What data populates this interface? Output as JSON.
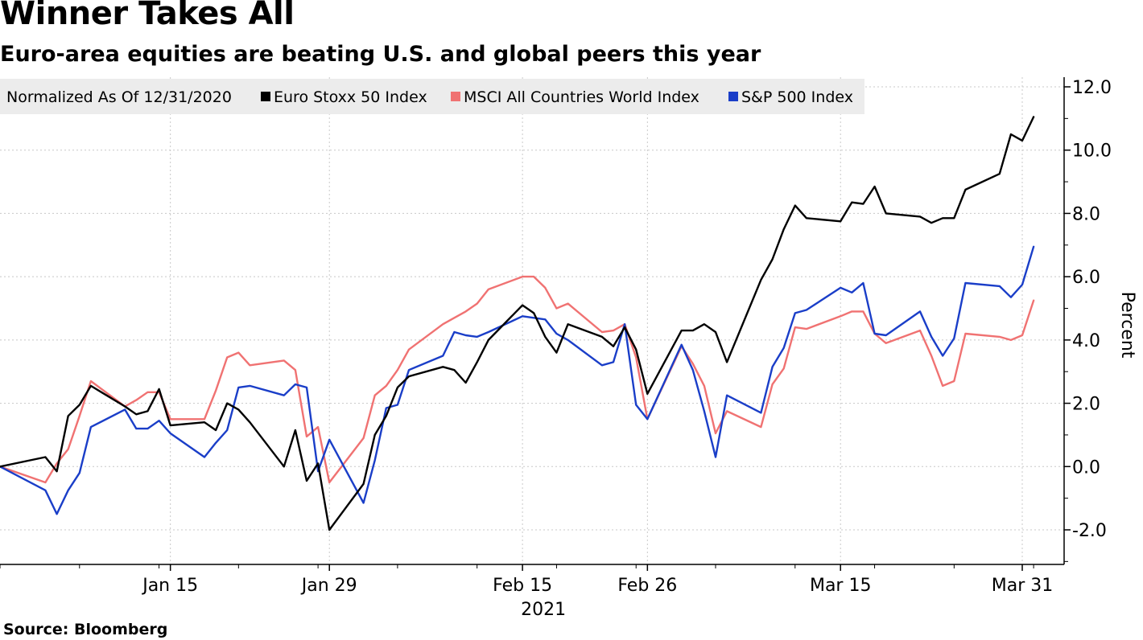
{
  "header": {
    "title": "Winner Takes All",
    "subtitle": "Euro-area equities are beating U.S. and global peers this year"
  },
  "footer": {
    "source": "Source: Bloomberg"
  },
  "chart_data": {
    "type": "line",
    "legend": {
      "title": "Normalized As Of 12/31/2020",
      "placement": "top-left"
    },
    "x": [
      "2020-12-31",
      "2021-01-04",
      "2021-01-05",
      "2021-01-06",
      "2021-01-07",
      "2021-01-08",
      "2021-01-11",
      "2021-01-12",
      "2021-01-13",
      "2021-01-14",
      "2021-01-15",
      "2021-01-18",
      "2021-01-19",
      "2021-01-20",
      "2021-01-21",
      "2021-01-22",
      "2021-01-25",
      "2021-01-26",
      "2021-01-27",
      "2021-01-28",
      "2021-01-29",
      "2021-02-01",
      "2021-02-02",
      "2021-02-03",
      "2021-02-04",
      "2021-02-05",
      "2021-02-08",
      "2021-02-09",
      "2021-02-10",
      "2021-02-11",
      "2021-02-12",
      "2021-02-15",
      "2021-02-16",
      "2021-02-17",
      "2021-02-18",
      "2021-02-19",
      "2021-02-22",
      "2021-02-23",
      "2021-02-24",
      "2021-02-25",
      "2021-02-26",
      "2021-03-01",
      "2021-03-02",
      "2021-03-03",
      "2021-03-04",
      "2021-03-05",
      "2021-03-08",
      "2021-03-09",
      "2021-03-10",
      "2021-03-11",
      "2021-03-12",
      "2021-03-15",
      "2021-03-16",
      "2021-03-17",
      "2021-03-18",
      "2021-03-19",
      "2021-03-22",
      "2021-03-23",
      "2021-03-24",
      "2021-03-25",
      "2021-03-26",
      "2021-03-29",
      "2021-03-30",
      "2021-03-31",
      "2021-04-01"
    ],
    "series": [
      {
        "name": "MSCI All Countries World Index",
        "color": "#f07272",
        "values": [
          0.0,
          -0.5,
          0.1,
          0.55,
          1.6,
          2.7,
          1.9,
          2.1,
          2.35,
          2.35,
          1.5,
          1.5,
          2.4,
          3.45,
          3.6,
          3.2,
          3.35,
          3.05,
          0.95,
          1.25,
          -0.5,
          0.9,
          2.25,
          2.55,
          3.05,
          3.7,
          4.5,
          4.7,
          4.9,
          5.15,
          5.6,
          6.0,
          6.0,
          5.65,
          5.0,
          5.15,
          4.25,
          4.3,
          4.5,
          3.45,
          1.5,
          3.8,
          3.25,
          2.55,
          1.05,
          1.75,
          1.25,
          2.6,
          3.1,
          4.4,
          4.35,
          4.75,
          4.9,
          4.9,
          4.2,
          3.9,
          4.3,
          3.5,
          2.55,
          2.7,
          4.2,
          4.1,
          4.0,
          4.15,
          5.25
        ]
      },
      {
        "name": "S&P 500 Index",
        "color": "#1a3ec8",
        "values": [
          0.0,
          -0.75,
          -1.5,
          -0.75,
          -0.2,
          1.25,
          1.8,
          1.2,
          1.2,
          1.45,
          1.05,
          0.3,
          0.75,
          1.15,
          2.5,
          2.55,
          2.25,
          2.6,
          2.5,
          -0.15,
          0.85,
          -1.15,
          0.2,
          1.85,
          1.95,
          3.05,
          3.5,
          4.25,
          4.15,
          4.1,
          4.25,
          4.75,
          4.7,
          4.65,
          4.2,
          4.0,
          3.2,
          3.3,
          4.5,
          1.95,
          1.5,
          3.85,
          3.05,
          1.75,
          0.3,
          2.25,
          1.7,
          3.15,
          3.75,
          4.85,
          4.95,
          5.65,
          5.5,
          5.8,
          4.2,
          4.15,
          4.9,
          4.1,
          3.5,
          4.05,
          5.8,
          5.7,
          5.35,
          5.75,
          6.95
        ]
      },
      {
        "name": "Euro Stoxx 50 Index",
        "color": "#000000",
        "values": [
          0.0,
          0.3,
          -0.15,
          1.6,
          1.95,
          2.55,
          1.9,
          1.65,
          1.75,
          2.45,
          1.3,
          1.4,
          1.15,
          2.0,
          1.8,
          1.4,
          0.0,
          1.15,
          -0.45,
          0.1,
          -2.0,
          -0.55,
          1.0,
          1.6,
          2.5,
          2.85,
          3.15,
          3.05,
          2.65,
          3.3,
          4.0,
          5.1,
          4.85,
          4.1,
          3.6,
          4.5,
          4.1,
          3.8,
          4.4,
          3.7,
          2.3,
          4.3,
          4.3,
          4.5,
          4.25,
          3.3,
          5.9,
          6.55,
          7.5,
          8.25,
          7.85,
          7.75,
          8.35,
          8.3,
          8.85,
          8.0,
          7.9,
          7.7,
          7.85,
          7.85,
          8.75,
          9.25,
          10.5,
          10.3,
          11.05
        ]
      }
    ],
    "x_ticks": [
      {
        "date": "2021-01-15",
        "label": "Jan 15"
      },
      {
        "date": "2021-01-29",
        "label": "Jan 29"
      },
      {
        "date": "2021-02-15",
        "label": "Feb 15"
      },
      {
        "date": "2021-02-26",
        "label": "Feb 26"
      },
      {
        "date": "2021-03-15",
        "label": "Mar 15"
      },
      {
        "date": "2021-03-31",
        "label": "Mar 31"
      }
    ],
    "year_label": "2021",
    "y_ticks": [
      "12.0",
      "10.0",
      "8.0",
      "6.0",
      "4.0",
      "2.0",
      "0.0",
      "-2.0"
    ],
    "y_tick_values": [
      12,
      10,
      8,
      6,
      4,
      2,
      0,
      -2
    ],
    "ylim": [
      -3.0,
      12.0
    ],
    "ylabel": "Percent",
    "y_axis_side": "right",
    "grid": true
  }
}
